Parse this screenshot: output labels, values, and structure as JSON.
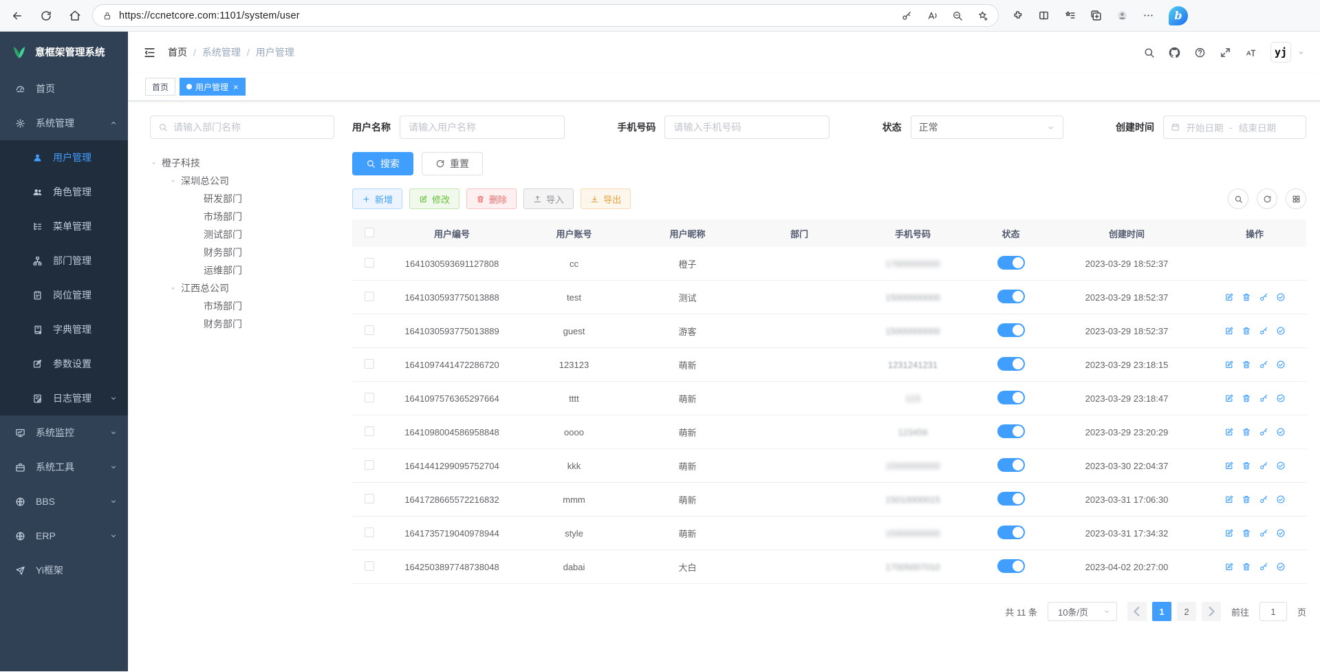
{
  "browser": {
    "url": "https://ccnetcore.com:1101/system/user",
    "nav_icons": [
      "back",
      "reload",
      "home"
    ],
    "pill_icons": [
      "saved-password",
      "read-aloud",
      "zoom-out",
      "add-favorite"
    ],
    "right_icons": [
      "browser-essentials",
      "split-screen",
      "favorites",
      "collections",
      "profile",
      "more"
    ]
  },
  "sidebar": {
    "logo_title": "意框架管理系统",
    "items": [
      {
        "label": "首页",
        "icon": "gauge"
      },
      {
        "label": "系统管理",
        "icon": "gear",
        "caret": "up"
      },
      {
        "label": "用户管理",
        "icon": "user",
        "sub": true,
        "active": true
      },
      {
        "label": "角色管理",
        "icon": "users",
        "sub": true
      },
      {
        "label": "菜单管理",
        "icon": "menutree",
        "sub": true
      },
      {
        "label": "部门管理",
        "icon": "org",
        "sub": true
      },
      {
        "label": "岗位管理",
        "icon": "badge",
        "sub": true
      },
      {
        "label": "字典管理",
        "icon": "dict",
        "sub": true
      },
      {
        "label": "参数设置",
        "icon": "param",
        "sub": true
      },
      {
        "label": "日志管理",
        "icon": "log",
        "sub": true,
        "caret": "down"
      },
      {
        "label": "系统监控",
        "icon": "monitor",
        "caret": "down"
      },
      {
        "label": "系统工具",
        "icon": "toolbox",
        "caret": "down"
      },
      {
        "label": "BBS",
        "icon": "globe",
        "caret": "down"
      },
      {
        "label": "ERP",
        "icon": "globe",
        "caret": "down"
      },
      {
        "label": "Yi框架",
        "icon": "send"
      }
    ]
  },
  "navbar": {
    "breadcrumb": [
      "首页",
      "系统管理",
      "用户管理"
    ],
    "separator": "/",
    "right_icons": [
      "search",
      "github",
      "question",
      "fullscreen",
      "fontsize"
    ],
    "avatar_glyph": "yj"
  },
  "tabs": [
    {
      "label": "首页",
      "active": false,
      "closable": false
    },
    {
      "label": "用户管理",
      "active": true,
      "closable": true
    }
  ],
  "filters": {
    "dept_placeholder": "请输入部门名称",
    "username_label": "用户名称",
    "username_placeholder": "请输入用户名称",
    "phone_label": "手机号码",
    "phone_placeholder": "请输入手机号码",
    "status_label": "状态",
    "status_value": "正常",
    "created_label": "创建时间",
    "date_start_placeholder": "开始日期",
    "date_separator": "-",
    "date_end_placeholder": "结束日期"
  },
  "tree": [
    {
      "label": "橙子科技",
      "level": 0,
      "expandable": true
    },
    {
      "label": "深圳总公司",
      "level": 1,
      "expandable": true
    },
    {
      "label": "研发部门",
      "level": 2
    },
    {
      "label": "市场部门",
      "level": 2
    },
    {
      "label": "测试部门",
      "level": 2
    },
    {
      "label": "财务部门",
      "level": 2
    },
    {
      "label": "运维部门",
      "level": 2
    },
    {
      "label": "江西总公司",
      "level": 1,
      "expandable": true
    },
    {
      "label": "市场部门",
      "level": 2
    },
    {
      "label": "财务部门",
      "level": 2
    }
  ],
  "actions": {
    "search_label": "搜索",
    "reset_label": "重置",
    "add_label": "新增",
    "edit_label": "修改",
    "delete_label": "删除",
    "import_label": "导入",
    "export_label": "导出"
  },
  "toolbar_right_icons": [
    "search",
    "refresh",
    "grid"
  ],
  "table": {
    "headers": [
      "用户编号",
      "用户账号",
      "用户昵称",
      "部门",
      "手机号码",
      "状态",
      "创建时间",
      "操作"
    ],
    "row_action_icons": [
      "edit",
      "delete",
      "key",
      "check"
    ],
    "rows": [
      {
        "id": "1641030593691127808",
        "account": "cc",
        "nickname": "橙子",
        "dept": "",
        "phone": "17600000000",
        "phone_blur": 3,
        "status": true,
        "created": "2023-03-29 18:52:37",
        "actions": false
      },
      {
        "id": "1641030593775013888",
        "account": "test",
        "nickname": "测试",
        "dept": "",
        "phone": "15000000000",
        "phone_blur": 2,
        "status": true,
        "created": "2023-03-29 18:52:37",
        "actions": true
      },
      {
        "id": "1641030593775013889",
        "account": "guest",
        "nickname": "游客",
        "dept": "",
        "phone": "15000000000",
        "phone_blur": 2,
        "status": true,
        "created": "2023-03-29 18:52:37",
        "actions": true
      },
      {
        "id": "1641097441472286720",
        "account": "123123",
        "nickname": "萌新",
        "dept": "",
        "phone": "1231241231",
        "phone_blur": 1,
        "status": true,
        "created": "2023-03-29 23:18:15",
        "actions": true
      },
      {
        "id": "1641097576365297664",
        "account": "tttt",
        "nickname": "萌新",
        "dept": "",
        "phone": "123",
        "phone_blur": 3,
        "status": true,
        "created": "2023-03-29 23:18:47",
        "actions": true
      },
      {
        "id": "1641098004586958848",
        "account": "oooo",
        "nickname": "萌新",
        "dept": "",
        "phone": "123456",
        "phone_blur": 2,
        "status": true,
        "created": "2023-03-29 23:20:29",
        "actions": true
      },
      {
        "id": "1641441299095752704",
        "account": "kkk",
        "nickname": "萌新",
        "dept": "",
        "phone": "15000000000",
        "phone_blur": 3,
        "status": true,
        "created": "2023-03-30 22:04:37",
        "actions": true
      },
      {
        "id": "1641728665572216832",
        "account": "mmm",
        "nickname": "萌新",
        "dept": "",
        "phone": "15010000015",
        "phone_blur": 2,
        "status": true,
        "created": "2023-03-31 17:06:30",
        "actions": true
      },
      {
        "id": "1641735719040978944",
        "account": "style",
        "nickname": "萌新",
        "dept": "",
        "phone": "15000000000",
        "phone_blur": 3,
        "status": true,
        "created": "2023-03-31 17:34:32",
        "actions": true
      },
      {
        "id": "1642503897748738048",
        "account": "dabai",
        "nickname": "大白",
        "dept": "",
        "phone": "17005007010",
        "phone_blur": 2,
        "status": true,
        "created": "2023-04-02 20:27:00",
        "actions": true
      }
    ]
  },
  "pagination": {
    "total_label": "共 11 条",
    "page_size": "10条/页",
    "pages": [
      "1",
      "2"
    ],
    "active_page": "1",
    "goto_label": "前往",
    "goto_value": "1",
    "goto_suffix": "页"
  },
  "colors": {
    "primary": "#409eff",
    "sidebar_bg": "#304156",
    "submenu_bg": "#1f2d3d",
    "success": "#67c23a",
    "danger": "#f56c6c",
    "warning": "#e6a23c"
  }
}
